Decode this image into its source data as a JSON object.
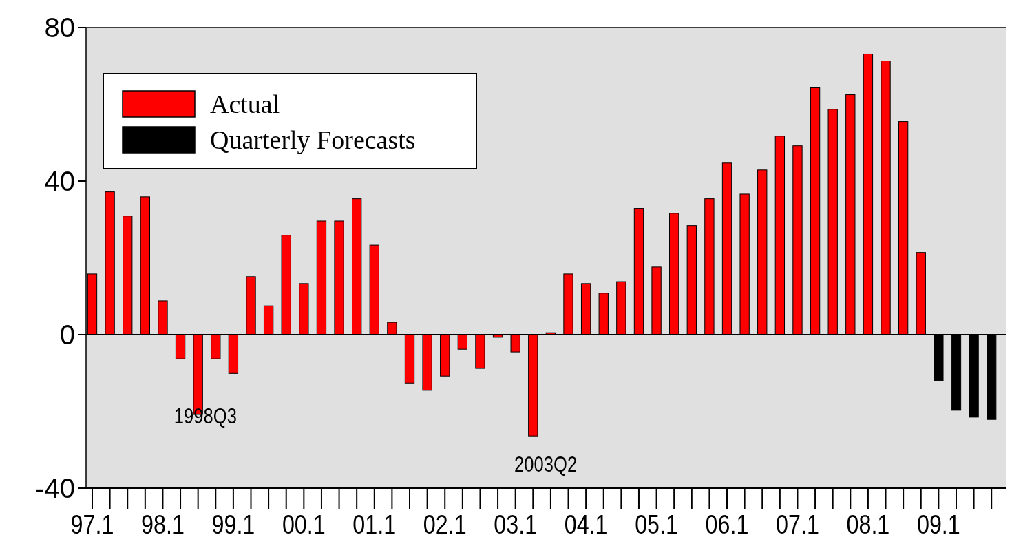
{
  "chart_data": {
    "type": "bar",
    "categories": [
      "97.1",
      null,
      null,
      null,
      "98.1",
      null,
      null,
      null,
      "99.1",
      null,
      null,
      null,
      "00.1",
      null,
      null,
      null,
      "01.1",
      null,
      null,
      null,
      "02.1",
      null,
      null,
      null,
      "03.1",
      null,
      null,
      null,
      "04.1",
      null,
      null,
      null,
      "05.1",
      null,
      null,
      null,
      "06.1",
      null,
      null,
      null,
      "07.1",
      null,
      null,
      null,
      "08.1",
      null,
      null,
      null,
      "09.1",
      null,
      null,
      null
    ],
    "series": [
      {
        "name": "Actual",
        "color": "#ff0000",
        "values": [
          15.8,
          37.2,
          30.9,
          35.9,
          8.8,
          -6.3,
          -20.8,
          -6.3,
          -10.1,
          15.1,
          7.5,
          25.9,
          13.3,
          29.6,
          29.6,
          35.4,
          23.3,
          3.2,
          -12.6,
          -14.5,
          -10.8,
          -3.8,
          -8.8,
          -0.7,
          -4.5,
          -26.4,
          0.5,
          15.8,
          13.3,
          10.8,
          13.8,
          32.9,
          17.6,
          31.6,
          28.4,
          35.4,
          44.7,
          36.6,
          42.9,
          51.7,
          49.2,
          64.3,
          58.7,
          62.5,
          73.1,
          71.3,
          55.5,
          21.4,
          null,
          null,
          null,
          null
        ]
      },
      {
        "name": "Quarterly Forecasts",
        "color": "#000000",
        "values": [
          null,
          null,
          null,
          null,
          null,
          null,
          null,
          null,
          null,
          null,
          null,
          null,
          null,
          null,
          null,
          null,
          null,
          null,
          null,
          null,
          null,
          null,
          null,
          null,
          null,
          null,
          null,
          null,
          null,
          null,
          null,
          null,
          null,
          null,
          null,
          null,
          null,
          null,
          null,
          null,
          null,
          null,
          null,
          null,
          null,
          null,
          null,
          null,
          -12.0,
          -19.7,
          -21.5,
          -22.1
        ]
      }
    ],
    "ref_lines": [
      {
        "axis": "y",
        "value": 0
      }
    ],
    "ylim": [
      -40,
      80
    ],
    "yticks": [
      -40,
      0,
      40,
      80
    ],
    "grid": false,
    "legend": "top left",
    "annotations": [
      "1998Q3",
      "2003Q2"
    ]
  }
}
